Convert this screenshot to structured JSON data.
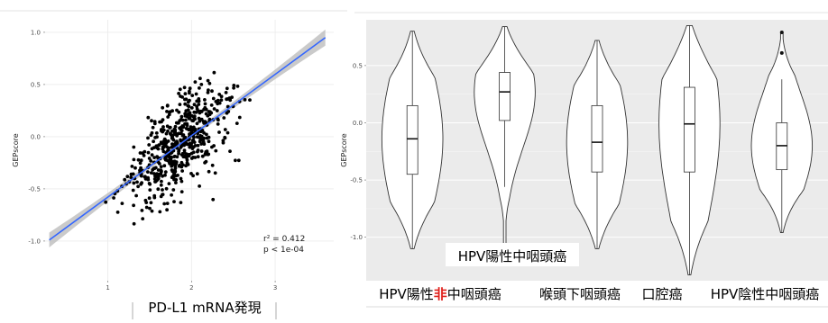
{
  "chart_data": [
    {
      "type": "scatter",
      "xlabel": "PD-L1 mRNA発現",
      "ylabel": "GEPscore",
      "xlim": [
        0.25,
        3.7
      ],
      "ylim": [
        -1.38,
        1.12
      ],
      "x_ticks": [
        "1",
        "2",
        "3"
      ],
      "y_ticks": [
        "1.0",
        "0.5",
        "0.0",
        "-0.5",
        "-1.0"
      ],
      "grid": true,
      "regression": {
        "x": [
          0.3,
          3.6
        ],
        "y": [
          -0.99,
          0.95
        ],
        "confidence_band": true,
        "color": "#3366ff",
        "band_color": "#bdbdbd"
      },
      "annotations": {
        "r_squared": "r² = 0.412",
        "p_value": "p < 1e-04"
      },
      "point_color": "#000000",
      "n_points": 560
    },
    {
      "type": "violin",
      "ylabel": "GEPscore",
      "ylim": [
        -1.38,
        0.9
      ],
      "y_ticks": [
        "0.5",
        "0.0",
        "-0.5",
        "-1.0"
      ],
      "grid": true,
      "categories": [
        {
          "label_prefix": "HPV陽性",
          "label_em": "非",
          "label_suffix": "中咽頭癌",
          "q1": -0.45,
          "median": -0.14,
          "q3": 0.15,
          "lo": -1.1,
          "hi": 0.8,
          "whisker_lo": -1.1,
          "whisker_hi": 0.8,
          "outliers": []
        },
        {
          "label_prefix": "HPV陽性中咽頭癌",
          "label_em": "",
          "label_suffix": "",
          "q1": 0.02,
          "median": 0.27,
          "q3": 0.44,
          "lo": -1.08,
          "hi": 0.84,
          "whisker_lo": -0.56,
          "whisker_hi": 0.84,
          "outliers": []
        },
        {
          "label_prefix": "喉頭下咽頭癌",
          "label_em": "",
          "label_suffix": "",
          "q1": -0.43,
          "median": -0.17,
          "q3": 0.15,
          "lo": -1.1,
          "hi": 0.72,
          "whisker_lo": -1.1,
          "whisker_hi": 0.72,
          "outliers": []
        },
        {
          "label_prefix": "口腔癌",
          "label_em": "",
          "label_suffix": "",
          "q1": -0.43,
          "median": -0.01,
          "q3": 0.31,
          "lo": -1.33,
          "hi": 0.85,
          "whisker_lo": -1.33,
          "whisker_hi": 0.85,
          "outliers": []
        },
        {
          "label_prefix": "HPV陰性中咽頭癌",
          "label_em": "",
          "label_suffix": "",
          "q1": -0.41,
          "median": -0.2,
          "q3": 0.0,
          "lo": -0.96,
          "hi": 0.79,
          "whisker_lo": -0.96,
          "whisker_hi": 0.38,
          "outliers": [
            0.79,
            0.61
          ]
        }
      ],
      "em_color": "#e0201b"
    }
  ]
}
